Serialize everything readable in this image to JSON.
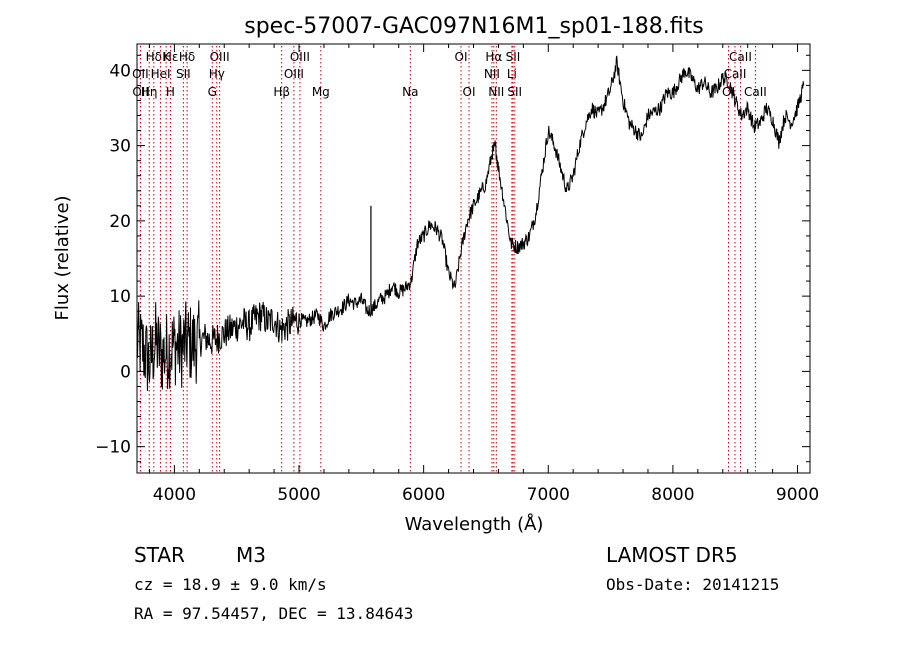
{
  "chart_data": {
    "type": "line",
    "title": "spec-57007-GAC097N16M1_sp01-188.fits",
    "xlabel": "Wavelength (Å)",
    "ylabel": "Flux (relative)",
    "xlim": [
      3700,
      9100
    ],
    "ylim": [
      -13.5,
      43.5
    ],
    "xticks": [
      4000,
      5000,
      6000,
      7000,
      8000,
      9000
    ],
    "yticks": [
      -10,
      0,
      10,
      20,
      30,
      40
    ],
    "grid": false,
    "series": [
      {
        "values": [
          [
            3700,
            4.0
          ],
          [
            3750,
            3.0
          ],
          [
            3800,
            1.0
          ],
          [
            3850,
            4.0
          ],
          [
            3900,
            2.0
          ],
          [
            3950,
            3.0
          ],
          [
            4000,
            3.5
          ],
          [
            4050,
            3.0
          ],
          [
            4100,
            4.0
          ],
          [
            4150,
            3.5
          ],
          [
            4200,
            4.0
          ],
          [
            4250,
            4.5
          ],
          [
            4300,
            4.0
          ],
          [
            4350,
            4.5
          ],
          [
            4400,
            5.0
          ],
          [
            4450,
            5.5
          ],
          [
            4500,
            6.0
          ],
          [
            4550,
            6.5
          ],
          [
            4600,
            6.0
          ],
          [
            4650,
            7.0
          ],
          [
            4700,
            7.5
          ],
          [
            4750,
            6.5
          ],
          [
            4800,
            7.0
          ],
          [
            4850,
            5.5
          ],
          [
            4900,
            6.0
          ],
          [
            4950,
            6.5
          ],
          [
            5000,
            7.0
          ],
          [
            5050,
            6.5
          ],
          [
            5100,
            7.0
          ],
          [
            5150,
            7.5
          ],
          [
            5200,
            6.0
          ],
          [
            5250,
            7.5
          ],
          [
            5300,
            8.0
          ],
          [
            5350,
            8.5
          ],
          [
            5400,
            9.5
          ],
          [
            5450,
            9.0
          ],
          [
            5500,
            9.5
          ],
          [
            5550,
            8.0
          ],
          [
            5600,
            8.5
          ],
          [
            5650,
            9.5
          ],
          [
            5700,
            10.0
          ],
          [
            5750,
            11.5
          ],
          [
            5800,
            10.5
          ],
          [
            5850,
            11.0
          ],
          [
            5900,
            12.0
          ],
          [
            5950,
            17.0
          ],
          [
            6000,
            18.0
          ],
          [
            6050,
            19.5
          ],
          [
            6100,
            19.0
          ],
          [
            6150,
            17.5
          ],
          [
            6200,
            13.0
          ],
          [
            6250,
            11.0
          ],
          [
            6300,
            16.0
          ],
          [
            6350,
            20.0
          ],
          [
            6400,
            22.0
          ],
          [
            6450,
            23.5
          ],
          [
            6500,
            25.0
          ],
          [
            6550,
            29.0
          ],
          [
            6575,
            30.0
          ],
          [
            6600,
            27.0
          ],
          [
            6650,
            22.0
          ],
          [
            6700,
            17.0
          ],
          [
            6750,
            16.5
          ],
          [
            6800,
            17.0
          ],
          [
            6850,
            18.0
          ],
          [
            6900,
            21.0
          ],
          [
            6950,
            26.5
          ],
          [
            7000,
            32.0
          ],
          [
            7050,
            30.0
          ],
          [
            7100,
            27.0
          ],
          [
            7150,
            24.0
          ],
          [
            7200,
            26.0
          ],
          [
            7250,
            30.0
          ],
          [
            7300,
            33.0
          ],
          [
            7350,
            35.0
          ],
          [
            7400,
            34.0
          ],
          [
            7450,
            35.5
          ],
          [
            7500,
            37.5
          ],
          [
            7550,
            41.0
          ],
          [
            7600,
            36.0
          ],
          [
            7650,
            33.0
          ],
          [
            7700,
            32.0
          ],
          [
            7750,
            31.0
          ],
          [
            7800,
            34.0
          ],
          [
            7850,
            34.5
          ],
          [
            7900,
            35.0
          ],
          [
            7950,
            37.0
          ],
          [
            8000,
            37.0
          ],
          [
            8050,
            38.5
          ],
          [
            8100,
            40.0
          ],
          [
            8150,
            39.0
          ],
          [
            8200,
            37.5
          ],
          [
            8250,
            38.5
          ],
          [
            8300,
            37.0
          ],
          [
            8350,
            37.5
          ],
          [
            8400,
            39.0
          ],
          [
            8450,
            38.5
          ],
          [
            8500,
            36.0
          ],
          [
            8550,
            34.0
          ],
          [
            8600,
            35.0
          ],
          [
            8650,
            32.5
          ],
          [
            8700,
            33.0
          ],
          [
            8750,
            35.0
          ],
          [
            8800,
            33.5
          ],
          [
            8850,
            30.5
          ],
          [
            8900,
            34.0
          ],
          [
            8950,
            33.0
          ],
          [
            9000,
            35.0
          ],
          [
            9050,
            38.0
          ]
        ]
      }
    ],
    "spikes": [
      [
        5577,
        22.0
      ]
    ],
    "lines": [
      {
        "label": "Hδ",
        "wave": 3835,
        "row": 0
      },
      {
        "label": "K",
        "wave": 3934,
        "row": 0
      },
      {
        "label": "Hε",
        "wave": 3970,
        "row": 0
      },
      {
        "label": "Hδ",
        "wave": 4102,
        "row": 0
      },
      {
        "label": "OIII",
        "wave": 4363,
        "row": 0
      },
      {
        "label": "OIII",
        "wave": 5007,
        "row": 0
      },
      {
        "label": "OI",
        "wave": 6300,
        "row": 0
      },
      {
        "label": "Hα",
        "wave": 6563,
        "row": 0
      },
      {
        "label": "SII",
        "wave": 6717,
        "row": 0
      },
      {
        "label": "CaII",
        "wave": 8542,
        "row": 0
      },
      {
        "label": "OII",
        "wave": 3727,
        "row": 1
      },
      {
        "label": "HeI",
        "wave": 3889,
        "row": 1
      },
      {
        "label": "SII",
        "wave": 4072,
        "row": 1
      },
      {
        "label": "Hγ",
        "wave": 4340,
        "row": 1
      },
      {
        "label": "OIII",
        "wave": 4959,
        "row": 1
      },
      {
        "label": "NII",
        "wave": 6548,
        "row": 1
      },
      {
        "label": "Li",
        "wave": 6708,
        "row": 1
      },
      {
        "label": "CaII",
        "wave": 8498,
        "row": 1
      },
      {
        "label": "OII",
        "wave": 3729,
        "row": 2
      },
      {
        "label": "Hη",
        "wave": 3798,
        "row": 2
      },
      {
        "label": "H",
        "wave": 3968,
        "row": 2
      },
      {
        "label": "G",
        "wave": 4304,
        "row": 2
      },
      {
        "label": "Hβ",
        "wave": 4861,
        "row": 2
      },
      {
        "label": "Mg",
        "wave": 5175,
        "row": 2
      },
      {
        "label": "Na",
        "wave": 5893,
        "row": 2
      },
      {
        "label": "OI",
        "wave": 6364,
        "row": 2
      },
      {
        "label": "NII",
        "wave": 6583,
        "row": 2
      },
      {
        "label": "SII",
        "wave": 6731,
        "row": 2
      },
      {
        "label": "OI",
        "wave": 8446,
        "row": 2
      },
      {
        "label": "CaII",
        "wave": 8662,
        "row": 2
      }
    ]
  },
  "info": {
    "object_type": "STAR",
    "subclass": "M3",
    "survey": "LAMOST DR5",
    "cz": "cz = 18.9 ± 9.0 km/s",
    "obs_date": "Obs-Date: 20141215",
    "coords": "RA =  97.54457, DEC =  13.84643"
  }
}
